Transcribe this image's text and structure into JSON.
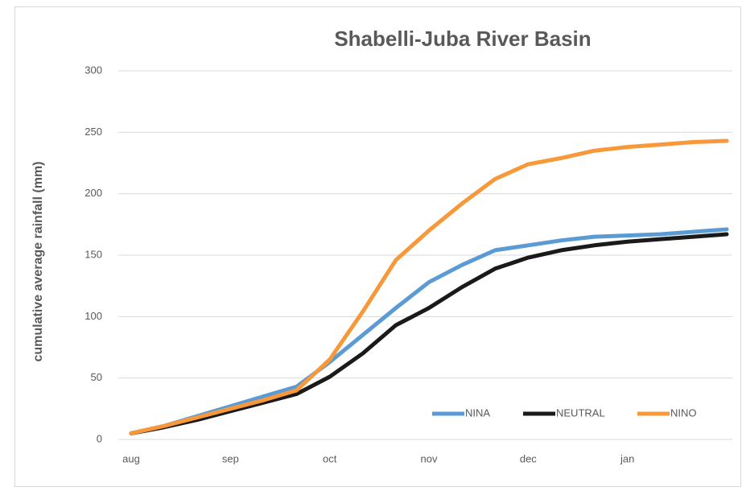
{
  "chart_data": {
    "type": "line",
    "title": "Shabelli-Juba River Basin",
    "y_label": "cumulative average rainfall (mm)",
    "categories": [
      "aug",
      null,
      null,
      "sep",
      null,
      null,
      "oct",
      null,
      null,
      "nov",
      null,
      null,
      "dec",
      null,
      null,
      "jan",
      null,
      null,
      null
    ],
    "series": [
      {
        "name": "NINA",
        "color": "#5b9bd5",
        "values": [
          5,
          11,
          19,
          27,
          35,
          43,
          63,
          85,
          107,
          128,
          142,
          154,
          158,
          162,
          165,
          166,
          167,
          169,
          171
        ]
      },
      {
        "name": "NEUTRAL",
        "color": "#1a1a1a",
        "values": [
          5,
          10,
          16,
          23,
          30,
          37,
          51,
          70,
          93,
          107,
          124,
          139,
          148,
          154,
          158,
          161,
          163,
          165,
          167
        ]
      },
      {
        "name": "NINO",
        "color": "#f7993a",
        "values": [
          5,
          11,
          18,
          25,
          32,
          40,
          65,
          104,
          146,
          170,
          192,
          212,
          224,
          229,
          235,
          238,
          240,
          242,
          243
        ]
      }
    ],
    "ylim": [
      0,
      300
    ],
    "yticks": [
      0,
      50,
      100,
      150,
      200,
      250,
      300
    ],
    "grid": true,
    "legend": "bottom-right"
  }
}
